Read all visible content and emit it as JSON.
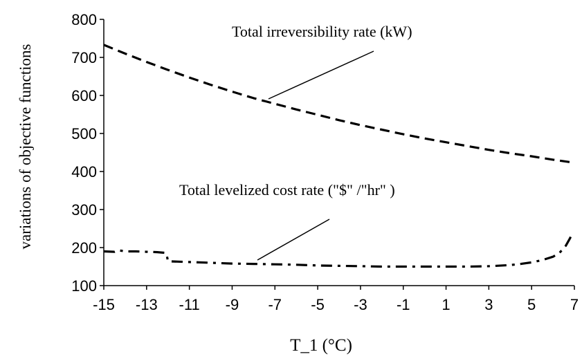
{
  "chart_data": {
    "type": "line",
    "xlabel": "T_1 (°C)",
    "ylabel": "variations of objective functions",
    "xlim": [
      -15,
      7
    ],
    "ylim": [
      100,
      800
    ],
    "xticks": [
      "-15",
      "-13",
      "-11",
      "-9",
      "-7",
      "-5",
      "-3",
      "-1",
      "1",
      "3",
      "5",
      "7"
    ],
    "yticks": [
      "100",
      "200",
      "300",
      "400",
      "500",
      "600",
      "700",
      "800"
    ],
    "grid": false,
    "series": [
      {
        "name": "Total irreversibility rate (kW)",
        "style": "dashed",
        "x": [
          -15,
          -14,
          -13,
          -12,
          -11,
          -10,
          -9,
          -8,
          -7,
          -6,
          -5,
          -4,
          -3,
          -2,
          -1,
          0,
          1,
          2,
          3,
          4,
          5,
          6,
          7
        ],
        "y": [
          733,
          710,
          688,
          667,
          647,
          628,
          610,
          593,
          578,
          563,
          549,
          535,
          522,
          510,
          498,
          487,
          477,
          467,
          457,
          448,
          440,
          431,
          423
        ]
      },
      {
        "name": "Total levelized cost rate (\"$\" /\"hr\" )",
        "style": "dashdot",
        "x": [
          -15,
          -14.5,
          -14.3,
          -14.0,
          -13.5,
          -13.0,
          -12.5,
          -12.1,
          -12.05,
          -12.0,
          -11.0,
          -10.0,
          -9.0,
          -8.0,
          -7.0,
          -6.0,
          -5.0,
          -4.0,
          -3.0,
          -2.0,
          -1.0,
          0.0,
          1.0,
          2.0,
          3.0,
          4.0,
          4.5,
          5.0,
          5.5,
          6.0,
          6.3,
          6.6,
          6.8,
          6.9
        ],
        "y": [
          190,
          189,
          193,
          190,
          190,
          189,
          188,
          186,
          178,
          164,
          162,
          160,
          158,
          157,
          156,
          155,
          153,
          152,
          151,
          150,
          150,
          150,
          150,
          150,
          151,
          154,
          157,
          161,
          167,
          176,
          186,
          205,
          225,
          240
        ]
      }
    ],
    "annotations": [
      {
        "text": "Total irreversibility rate (kW)",
        "series": 0
      },
      {
        "text": "Total levelized cost rate (\"$\" /\"hr\" )",
        "series": 1
      }
    ]
  }
}
